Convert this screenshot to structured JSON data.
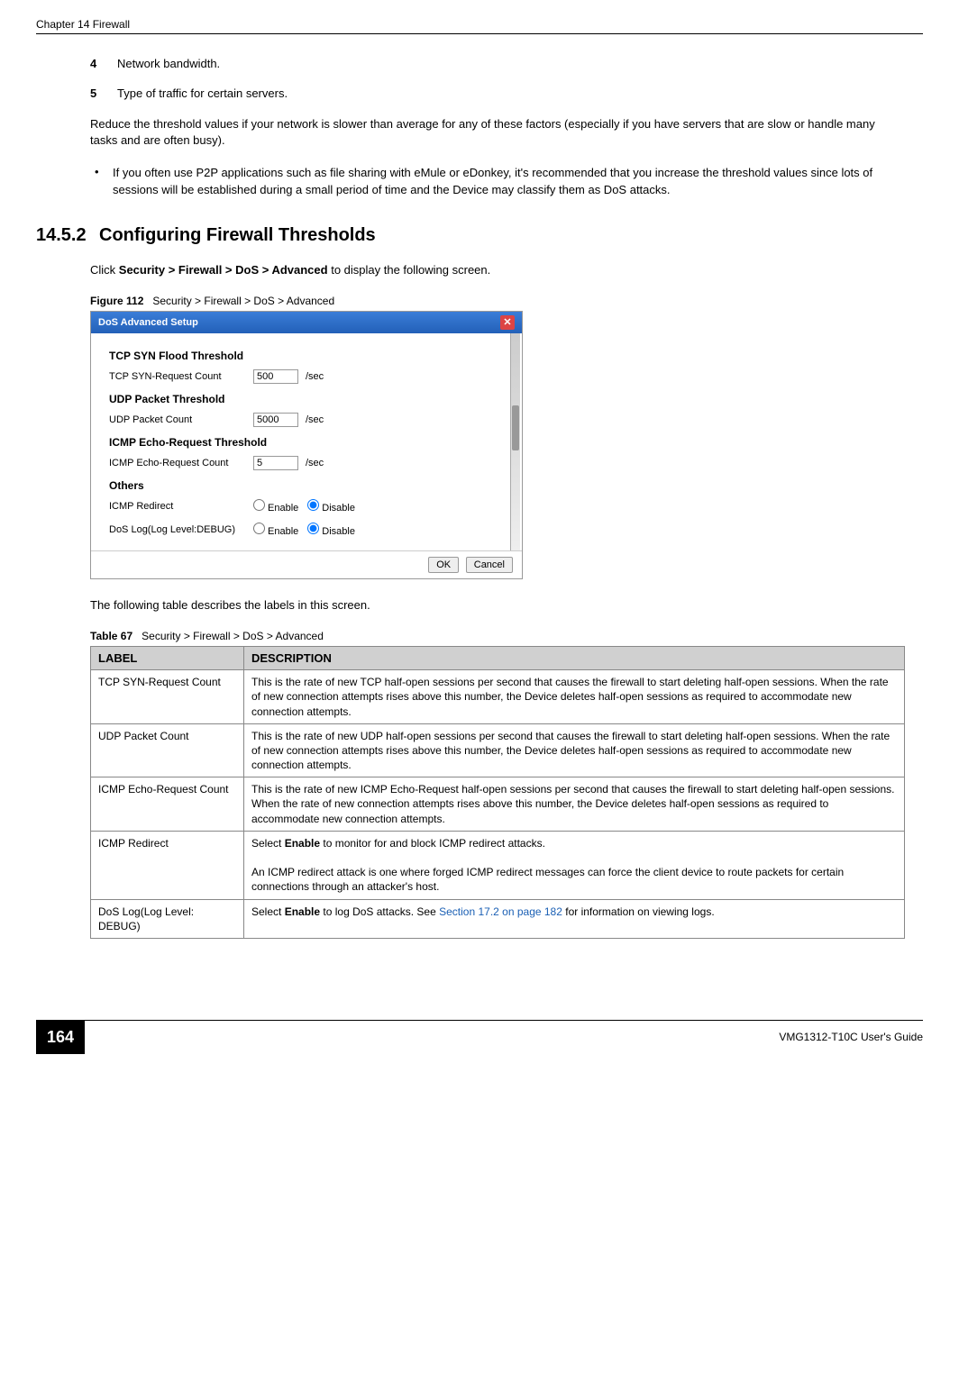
{
  "header": {
    "chapter": "Chapter 14 Firewall"
  },
  "list": {
    "item4": {
      "num": "4",
      "text": "Network bandwidth."
    },
    "item5": {
      "num": "5",
      "text": "Type of traffic for certain servers."
    }
  },
  "paragraphs": {
    "reduce": "Reduce the threshold values if your network is slower than average for any of these factors (especially if you have servers that are slow or handle many tasks and are often busy).",
    "p2p": "If you often use P2P applications such as file sharing with eMule or eDonkey, it's recommended that you increase the threshold values since lots of sessions will be established during a small period of time and the Device may classify them as DoS attacks."
  },
  "section": {
    "num": "14.5.2",
    "title": "Configuring Firewall Thresholds",
    "intro_prefix": "Click ",
    "intro_bold": "Security > Firewall > DoS > Advanced",
    "intro_suffix": " to display the following screen."
  },
  "figure": {
    "label": "Figure 112",
    "title": "Security > Firewall > DoS > Advanced"
  },
  "dialog": {
    "title": "DoS Advanced Setup",
    "sections": {
      "tcp": {
        "heading": "TCP SYN Flood Threshold",
        "label": "TCP SYN-Request Count",
        "value": "500",
        "unit": "/sec"
      },
      "udp": {
        "heading": "UDP Packet Threshold",
        "label": "UDP Packet Count",
        "value": "5000",
        "unit": "/sec"
      },
      "icmp": {
        "heading": "ICMP Echo-Request Threshold",
        "label": "ICMP Echo-Request Count",
        "value": "5",
        "unit": "/sec"
      },
      "others": {
        "heading": "Others",
        "redirect_label": "ICMP Redirect",
        "log_label": "DoS Log(Log Level:DEBUG)",
        "enable": "Enable",
        "disable": "Disable"
      }
    },
    "buttons": {
      "ok": "OK",
      "cancel": "Cancel"
    }
  },
  "table_intro": "The following table describes the labels in this screen.",
  "table": {
    "caption_label": "Table 67",
    "caption_title": "Security > Firewall > DoS > Advanced",
    "headers": {
      "label": "LABEL",
      "desc": "DESCRIPTION"
    },
    "rows": [
      {
        "label": "TCP SYN-Request Count",
        "desc": "This is the rate of new TCP half-open sessions per second that causes the firewall to start deleting half-open sessions. When the rate of new connection attempts rises above this number, the Device deletes half-open sessions as required to accommodate new connection attempts."
      },
      {
        "label": "UDP Packet Count",
        "desc": "This is the rate of new UDP half-open sessions per second that causes the firewall to start deleting half-open sessions. When the rate of new connection attempts rises above this number, the Device deletes half-open sessions as required to accommodate new connection attempts."
      },
      {
        "label": "ICMP Echo-Request Count",
        "desc": "This is the rate of new ICMP Echo-Request half-open sessions per second that causes the firewall to start deleting half-open sessions. When the rate of new connection attempts rises above this number, the Device deletes half-open sessions as required to accommodate new connection attempts."
      },
      {
        "label": "ICMP Redirect",
        "desc_prefix": "Select ",
        "desc_bold": "Enable",
        "desc_mid": " to monitor for and block ICMP redirect attacks.",
        "desc_para2": "An ICMP redirect attack is one where forged ICMP redirect messages can force the client device to route packets for certain connections through an attacker's host."
      },
      {
        "label": "DoS Log(Log Level: DEBUG)",
        "desc_prefix": "Select ",
        "desc_bold": "Enable",
        "desc_mid": " to log DoS attacks. See ",
        "desc_link": "Section 17.2 on page 182",
        "desc_suffix": " for information on viewing logs."
      }
    ]
  },
  "footer": {
    "page": "164",
    "guide": "VMG1312-T10C User's Guide"
  }
}
